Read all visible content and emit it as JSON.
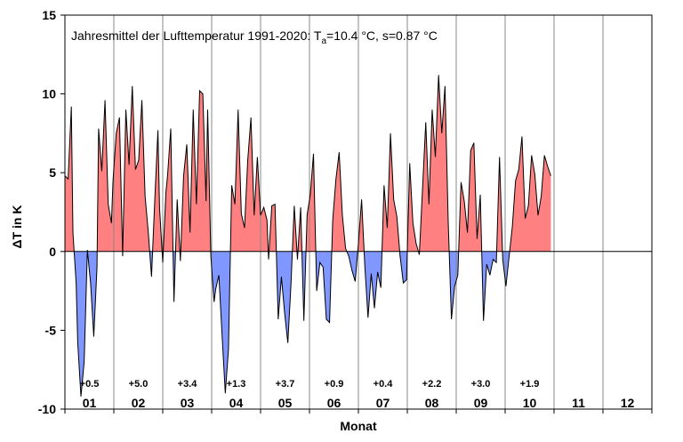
{
  "chart_data": {
    "type": "area",
    "title": "Jahresmittel der Lufttemperatur 1991-2020: T",
    "title_sub": "a",
    "title_rest": "=10.4 °C, s=0.87 °C",
    "xlabel": "Monat",
    "ylabel": "ΔT in K",
    "ylim": [
      -10,
      15
    ],
    "yticks": [
      -10,
      -5,
      0,
      5,
      10,
      15
    ],
    "months": [
      "01",
      "02",
      "03",
      "04",
      "05",
      "06",
      "07",
      "08",
      "09",
      "10",
      "11",
      "12"
    ],
    "monthly_anomalies": [
      "+0.5",
      "+5.0",
      "+3.4",
      "+1.3",
      "+3.7",
      "+0.9",
      "+0.4",
      "+2.2",
      "+3.0",
      "+1.9"
    ],
    "grid": "vertical month lines",
    "colors": {
      "positive": "#ff8080",
      "negative": "#8097ff",
      "line": "#000000"
    },
    "series": [
      {
        "day": [
          1,
          3,
          5,
          6,
          8,
          9,
          11,
          13,
          15,
          17,
          19,
          21,
          22,
          24,
          26,
          28,
          30,
          31,
          33,
          35,
          37,
          39,
          41,
          43,
          45,
          47,
          49,
          51,
          53,
          55,
          57,
          59,
          60,
          62,
          64,
          65,
          67,
          69,
          71,
          73,
          75,
          77,
          79,
          81,
          83,
          85,
          87,
          89,
          90,
          92,
          94,
          95,
          97,
          99,
          101,
          103,
          105,
          107,
          109,
          111,
          113,
          115,
          117,
          119,
          121,
          123,
          125,
          127,
          128,
          130,
          132,
          134,
          136,
          138,
          140,
          142,
          144,
          146,
          148,
          150,
          152,
          154,
          156,
          158,
          160,
          162,
          164,
          166,
          168,
          170,
          172,
          174,
          176,
          178,
          180,
          182,
          184,
          186,
          188,
          190,
          192,
          194,
          196,
          198,
          200,
          202,
          204,
          206,
          208,
          210,
          212,
          214,
          216,
          218,
          220,
          222,
          224,
          226,
          228,
          230,
          232,
          234,
          236,
          238,
          240,
          242,
          244,
          246,
          248,
          250,
          252,
          254,
          256,
          258,
          260,
          262,
          264,
          266,
          268,
          270,
          272,
          274,
          276,
          278,
          280,
          282,
          284,
          286,
          288,
          290,
          292,
          294,
          296,
          298,
          300,
          302,
          304
        ],
        "dT": [
          4.8,
          4.6,
          9.2,
          1.2,
          -2.0,
          -5.8,
          -9.2,
          -7.0,
          0.1,
          -2.0,
          -5.4,
          -1.0,
          7.8,
          5.1,
          9.6,
          3.0,
          1.8,
          4.5,
          7.5,
          8.5,
          -0.3,
          9.0,
          5.5,
          10.5,
          5.2,
          5.8,
          9.6,
          3.5,
          1.2,
          -1.6,
          3.2,
          7.7,
          2.8,
          -0.7,
          3.8,
          4.8,
          7.8,
          -3.2,
          3.3,
          -0.6,
          4.8,
          6.8,
          1.2,
          9.0,
          3.0,
          10.2,
          10.0,
          3.2,
          9.0,
          -0.3,
          -3.2,
          -2.4,
          -1.5,
          -5.3,
          -9.0,
          -6.2,
          4.2,
          3.0,
          9.0,
          2.4,
          1.5,
          5.8,
          8.5,
          2.3,
          6.0,
          2.3,
          2.8,
          2.0,
          -0.5,
          2.9,
          3.0,
          -4.3,
          -1.6,
          -3.9,
          -5.8,
          -2.0,
          2.9,
          -0.5,
          2.8,
          -4.4,
          2.3,
          3.6,
          6.2,
          -2.5,
          -0.7,
          -1.0,
          -4.3,
          -4.5,
          2.0,
          4.6,
          6.3,
          2.3,
          0.2,
          -0.3,
          -1.2,
          -1.9,
          0.5,
          3.3,
          -0.9,
          -4.2,
          -1.4,
          -3.6,
          -1.3,
          -2.3,
          4.2,
          1.5,
          7.5,
          3.3,
          2.2,
          -0.3,
          -2.0,
          -1.8,
          5.6,
          1.8,
          0.5,
          -0.2,
          4.0,
          8.2,
          3.0,
          9.0,
          6.0,
          11.2,
          7.5,
          10.5,
          1.9,
          -4.3,
          -2.2,
          -1.5,
          4.4,
          3.2,
          1.2,
          6.4,
          6.9,
          0.8,
          3.6,
          -4.4,
          -0.8,
          -1.5,
          -0.5,
          -0.7,
          6.0,
          -0.5,
          -2.2,
          -0.3,
          1.6,
          4.5,
          5.2,
          7.3,
          2.1,
          2.9,
          6.1,
          4.9,
          2.3,
          3.5,
          6.1,
          5.4,
          4.8
        ]
      }
    ]
  }
}
